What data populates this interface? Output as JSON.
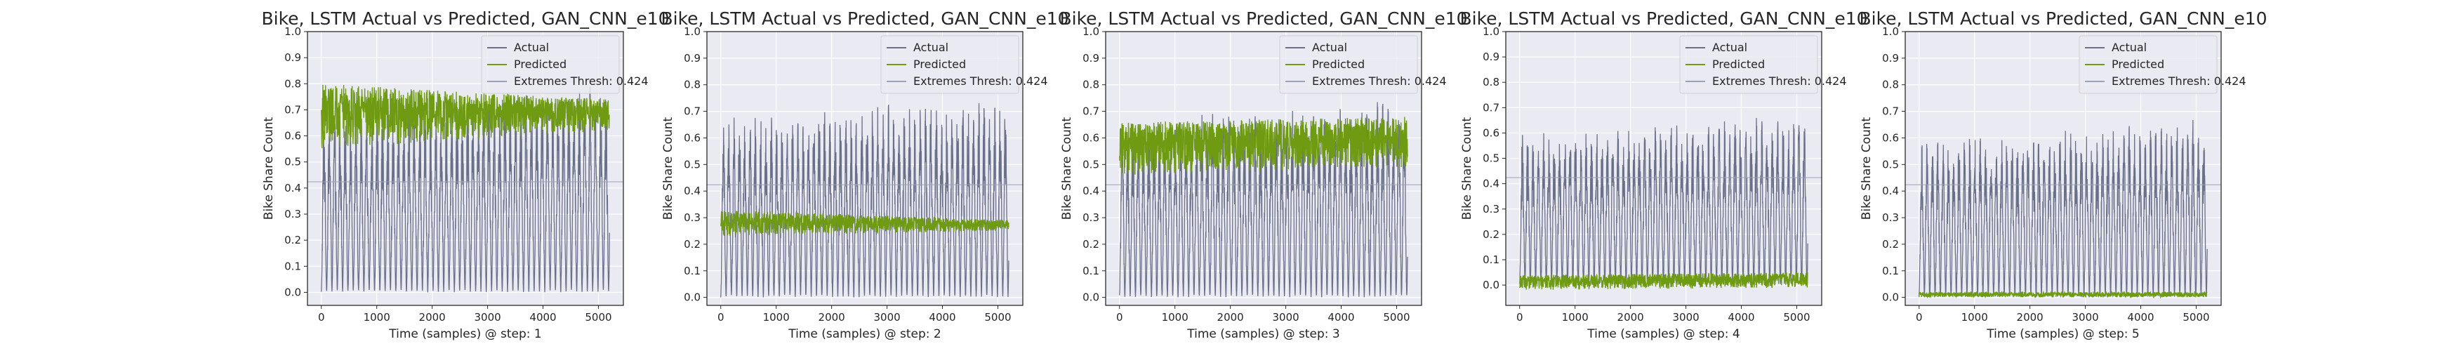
{
  "chart_data": [
    {
      "type": "line",
      "title": "Bike, LSTM Actual vs Predicted, GAN_CNN_e10",
      "xlabel": "Time (samples) @ step: 1",
      "ylabel": "Bike Share Count",
      "xlim": [
        -250,
        5450
      ],
      "ylim": [
        -0.05,
        1.0
      ],
      "xticks": [
        0,
        1000,
        2000,
        3000,
        4000,
        5000
      ],
      "yticks": [
        0.0,
        0.1,
        0.2,
        0.3,
        0.4,
        0.5,
        0.6,
        0.7,
        0.8,
        0.9,
        1.0
      ],
      "threshold": 0.424,
      "grid": true,
      "legend_position": "top-right",
      "legend": [
        "Actual",
        "Predicted",
        "Extremes Thresh: 0.424"
      ],
      "series": [
        {
          "name": "Actual",
          "color": "#6b7089",
          "n": 5200,
          "min": 0.0,
          "peaks": [
            0.55,
            0.82
          ]
        },
        {
          "name": "Predicted",
          "color": "#6e9b12",
          "n": 5200,
          "min": 0.55,
          "max": 0.87,
          "base": [
            0.55,
            0.62
          ],
          "top": [
            0.8,
            0.74
          ]
        }
      ]
    },
    {
      "type": "line",
      "title": "Bike, LSTM Actual vs Predicted, GAN_CNN_e10",
      "xlabel": "Time (samples) @ step: 2",
      "ylabel": "Bike Share Count",
      "xlim": [
        -250,
        5450
      ],
      "ylim": [
        -0.03,
        1.0
      ],
      "xticks": [
        0,
        1000,
        2000,
        3000,
        4000,
        5000
      ],
      "yticks": [
        0.0,
        0.1,
        0.2,
        0.3,
        0.4,
        0.5,
        0.6,
        0.7,
        0.8,
        0.9,
        1.0
      ],
      "threshold": 0.424,
      "grid": true,
      "legend_position": "top-right",
      "legend": [
        "Actual",
        "Predicted",
        "Extremes Thresh: 0.424"
      ],
      "series": [
        {
          "name": "Actual",
          "color": "#6b7089",
          "n": 5200,
          "min": 0.0,
          "peaks": [
            0.55,
            0.78
          ]
        },
        {
          "name": "Predicted",
          "color": "#6e9b12",
          "n": 5200,
          "min": 0.22,
          "max": 0.36,
          "base": [
            0.23,
            0.25
          ],
          "top": [
            0.33,
            0.29
          ]
        }
      ]
    },
    {
      "type": "line",
      "title": "Bike, LSTM Actual vs Predicted, GAN_CNN_e10",
      "xlabel": "Time (samples) @ step: 3",
      "ylabel": "Bike Share Count",
      "xlim": [
        -250,
        5450
      ],
      "ylim": [
        -0.03,
        1.0
      ],
      "xticks": [
        0,
        1000,
        2000,
        3000,
        4000,
        5000
      ],
      "yticks": [
        0.0,
        0.1,
        0.2,
        0.3,
        0.4,
        0.5,
        0.6,
        0.7,
        0.8,
        0.9,
        1.0
      ],
      "threshold": 0.424,
      "grid": true,
      "legend_position": "top-right",
      "legend": [
        "Actual",
        "Predicted",
        "Extremes Thresh: 0.424"
      ],
      "series": [
        {
          "name": "Actual",
          "color": "#6b7089",
          "n": 5200,
          "min": 0.0,
          "peaks": [
            0.55,
            0.76
          ]
        },
        {
          "name": "Predicted",
          "color": "#6e9b12",
          "n": 5200,
          "min": 0.45,
          "max": 0.7,
          "base": [
            0.46,
            0.49
          ],
          "top": [
            0.66,
            0.68
          ]
        }
      ]
    },
    {
      "type": "line",
      "title": "Bike, LSTM Actual vs Predicted, GAN_CNN_e10",
      "xlabel": "Time (samples) @ step: 4",
      "ylabel": "Bike Share Count",
      "xlim": [
        -250,
        5450
      ],
      "ylim": [
        -0.08,
        1.0
      ],
      "xticks": [
        0,
        1000,
        2000,
        3000,
        4000,
        5000
      ],
      "yticks": [
        0.0,
        0.1,
        0.2,
        0.3,
        0.4,
        0.5,
        0.6,
        0.7,
        0.8,
        0.9,
        1.0
      ],
      "threshold": 0.424,
      "grid": true,
      "legend_position": "top-right",
      "legend": [
        "Actual",
        "Predicted",
        "Extremes Thresh: 0.424"
      ],
      "series": [
        {
          "name": "Actual",
          "color": "#6b7089",
          "n": 5200,
          "min": 0.0,
          "peaks": [
            0.5,
            0.68
          ]
        },
        {
          "name": "Predicted",
          "color": "#6e9b12",
          "n": 5200,
          "min": -0.03,
          "max": 0.06,
          "base": [
            -0.02,
            -0.01
          ],
          "top": [
            0.04,
            0.05
          ]
        }
      ]
    },
    {
      "type": "line",
      "title": "Bike, LSTM Actual vs Predicted, GAN_CNN_e10",
      "xlabel": "Time (samples) @ step: 5",
      "ylabel": "Bike Share Count",
      "xlim": [
        -250,
        5450
      ],
      "ylim": [
        -0.03,
        1.0
      ],
      "xticks": [
        0,
        1000,
        2000,
        3000,
        4000,
        5000
      ],
      "yticks": [
        0.0,
        0.1,
        0.2,
        0.3,
        0.4,
        0.5,
        0.6,
        0.7,
        0.8,
        0.9,
        1.0
      ],
      "threshold": 0.424,
      "grid": true,
      "legend_position": "top-right",
      "legend": [
        "Actual",
        "Predicted",
        "Extremes Thresh: 0.424"
      ],
      "series": [
        {
          "name": "Actual",
          "color": "#6b7089",
          "n": 5200,
          "min": 0.0,
          "peaks": [
            0.5,
            0.68
          ]
        },
        {
          "name": "Predicted",
          "color": "#6e9b12",
          "n": 5200,
          "min": 0.0,
          "max": 0.03,
          "base": [
            0.0,
            0.0
          ],
          "top": [
            0.02,
            0.02
          ]
        }
      ]
    }
  ],
  "style": {
    "axes_bg": "#eaeaf2",
    "grid_color": "#ffffff",
    "threshold_color": "#9aa2b8",
    "text_color": "#262626",
    "legend_bg": "#eaeaf2",
    "legend_border": "#d0d0d0"
  }
}
